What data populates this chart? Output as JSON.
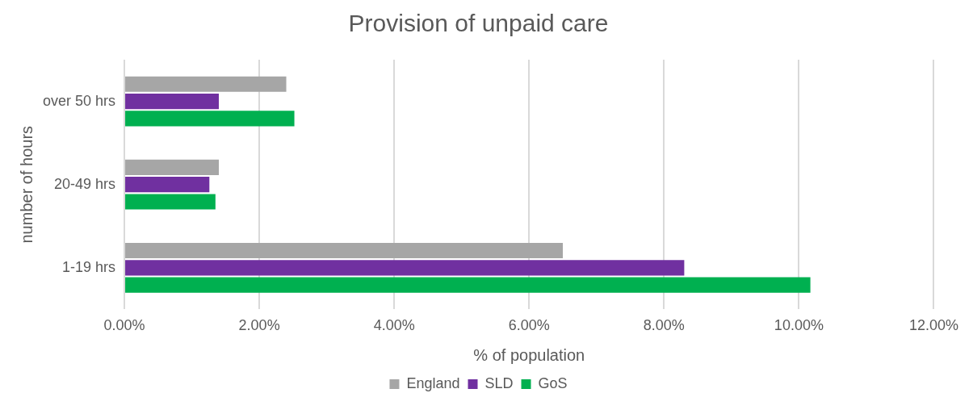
{
  "chart_data": {
    "type": "bar",
    "orientation": "horizontal",
    "title": "Provision of unpaid care",
    "xlabel": "% of population",
    "ylabel": "number of hours",
    "categories": [
      "over 50 hrs",
      "20-49 hrs",
      "1-19 hrs"
    ],
    "series": [
      {
        "name": "England",
        "color": "#a6a6a6",
        "values": [
          2.4,
          1.4,
          6.5
        ]
      },
      {
        "name": "SLD",
        "color": "#7030a0",
        "values": [
          1.4,
          1.26,
          8.3
        ]
      },
      {
        "name": "GoS",
        "color": "#00b050",
        "values": [
          2.52,
          1.35,
          10.17
        ]
      }
    ],
    "xlim": [
      0,
      12
    ],
    "xticks": [
      {
        "value": 0,
        "label": "0.00%"
      },
      {
        "value": 2,
        "label": "2.00%"
      },
      {
        "value": 4,
        "label": "4.00%"
      },
      {
        "value": 6,
        "label": "6.00%"
      },
      {
        "value": 8,
        "label": "8.00%"
      },
      {
        "value": 10,
        "label": "10.00%"
      },
      {
        "value": 12,
        "label": "12.00%"
      }
    ],
    "grid": "x",
    "legend": "bottom"
  }
}
